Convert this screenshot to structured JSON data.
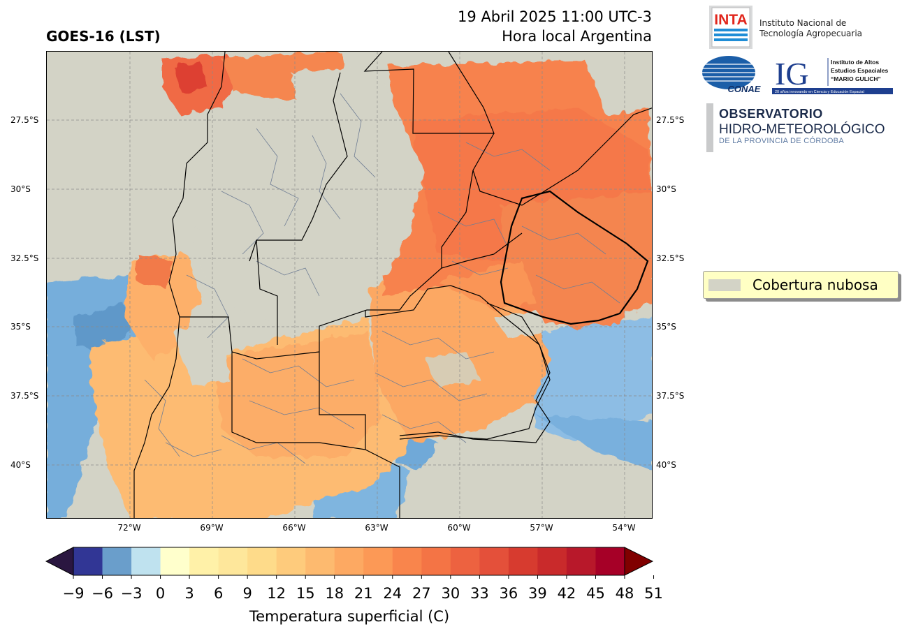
{
  "title": "GOES-16 (LST)",
  "date_line1": "19 Abril 2025 11:00 UTC-3",
  "date_line2": "Hora local Argentina",
  "lat_labels": [
    "27.5°S",
    "30°S",
    "32.5°S",
    "35°S",
    "37.5°S",
    "40°S"
  ],
  "lon_labels": [
    "72°W",
    "69°W",
    "66°W",
    "63°W",
    "60°W",
    "57°W",
    "54°W"
  ],
  "legend": {
    "label": "Cobertura nubosa",
    "color": "#d3d3c6"
  },
  "colorbar": {
    "label": "Temperatura superficial (C)",
    "ticks": [
      "−9",
      "−6",
      "−3",
      "0",
      "3",
      "6",
      "9",
      "12",
      "15",
      "18",
      "21",
      "24",
      "27",
      "30",
      "33",
      "36",
      "39",
      "42",
      "45",
      "48",
      "51"
    ],
    "colors": [
      "#313695",
      "#6a9ecb",
      "#bfe2ef",
      "#ffffcc",
      "#fff1a8",
      "#fee79b",
      "#fedb8a",
      "#fecb7c",
      "#fdba6f",
      "#fda962",
      "#fc9956",
      "#f9854c",
      "#f47445",
      "#ed6240",
      "#e4503a",
      "#d73b2f",
      "#c92a2b",
      "#b8182a",
      "#a60027"
    ],
    "under_color": "#2a1640",
    "over_color": "#800000"
  },
  "logos": {
    "inta_mark": "INTA",
    "inta_text_1": "Instituto Nacional de",
    "inta_text_2": "Tecnología Agropecuaria",
    "conae": "CONAE",
    "ig_mark": "IG",
    "ig_text_1": "Instituto de Altos",
    "ig_text_2": "Estudios Espaciales",
    "ig_text_3": "“MARIO GULICH”",
    "ig_tagline": "20 años innovando en Ciencia y Educación Espacial",
    "obs_1": "OBSERVATORIO",
    "obs_2": "HIDRO-METEOROLÓGICO",
    "obs_3": "DE LA PROVINCIA DE CÓRDOBA"
  }
}
